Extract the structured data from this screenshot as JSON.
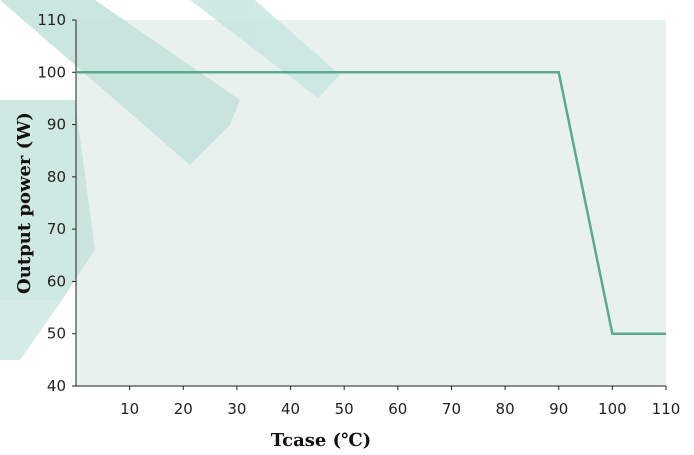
{
  "chart_data": {
    "type": "line",
    "title": "",
    "xlabel": "Tcase (℃)",
    "ylabel": "Output power (W)",
    "xlim": [
      0,
      110
    ],
    "ylim": [
      40,
      110
    ],
    "x_ticks": [
      "10",
      "20",
      "30",
      "40",
      "50",
      "60",
      "70",
      "80",
      "90",
      "100",
      "110"
    ],
    "y_ticks": [
      "40",
      "50",
      "60",
      "70",
      "80",
      "90",
      "100",
      "110"
    ],
    "grid": false,
    "legend": "none",
    "series": [
      {
        "x": [
          0,
          90,
          100,
          110
        ],
        "y": [
          100,
          100,
          50,
          50
        ],
        "color": "#5aaa8e"
      }
    ],
    "colors": {
      "plot_background": "#e8f1ee",
      "watermark": "#c3e4dd",
      "axis": "#222222"
    }
  }
}
